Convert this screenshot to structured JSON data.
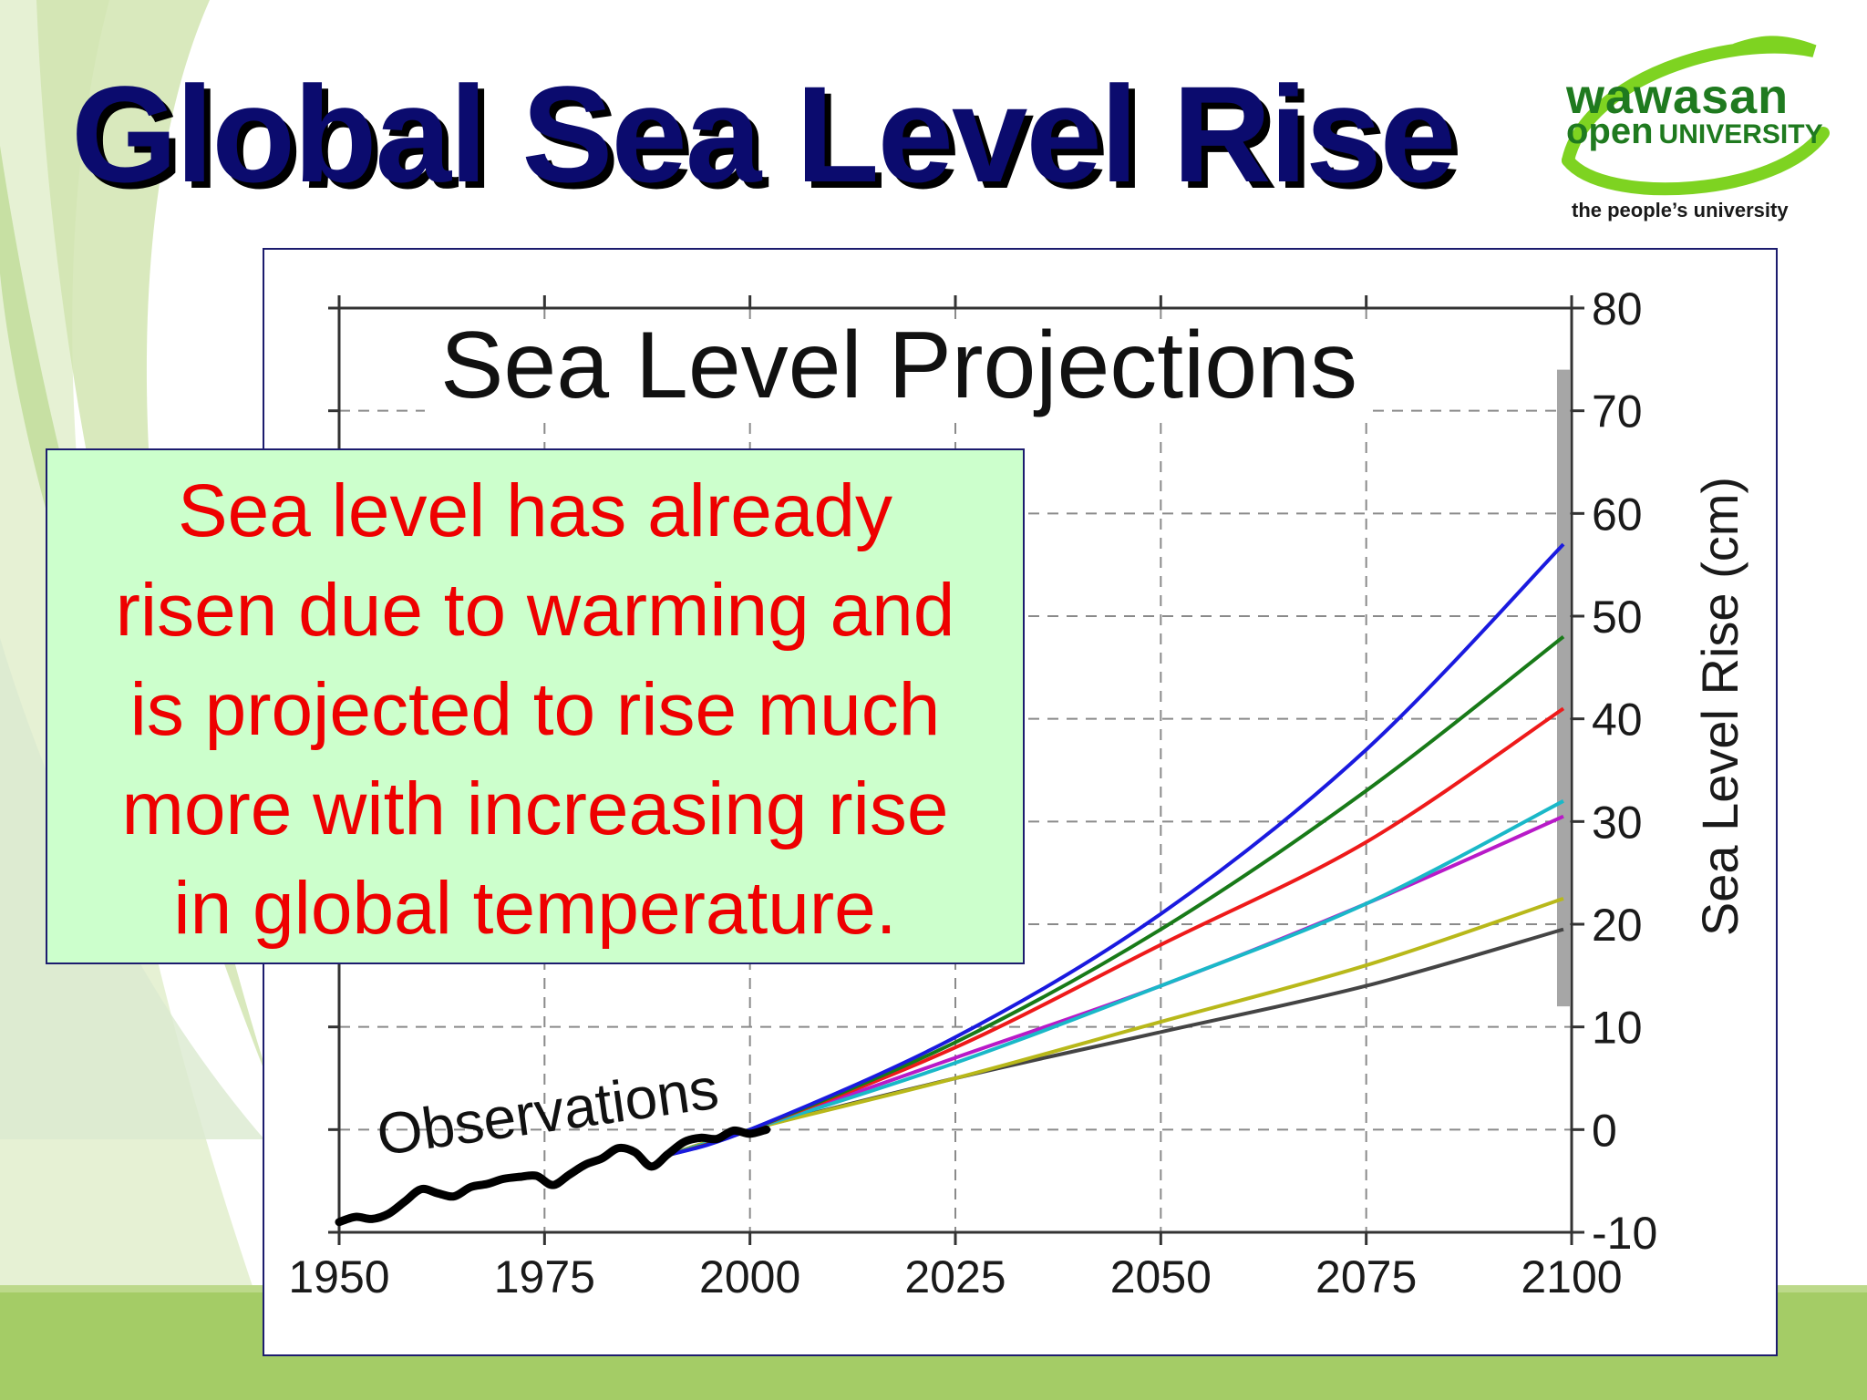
{
  "slide": {
    "title": "Global Sea Level Rise",
    "logo": {
      "line1": "wawasan",
      "line2_word": "open",
      "line2_uni": "UNIVERSITY",
      "tagline": "the people’s university"
    },
    "callout_lines": [
      "Sea level has already",
      "risen due to warming and",
      "is projected to rise much",
      "more with increasing rise",
      "in global temperature."
    ]
  },
  "colors": {
    "title": "#0b0b6e",
    "callout_text": "#ee0000",
    "callout_bg": "#ccffcc",
    "logo_green": "#1f7a1f",
    "logo_ring": "#7ed321",
    "footer_green": "#a4cc66"
  },
  "chart_data": {
    "type": "line",
    "title": "Sea Level Projections",
    "xlabel": "",
    "ylabel": "Sea Level Rise (cm)",
    "xlim": [
      1950,
      2100
    ],
    "ylim": [
      -10,
      80
    ],
    "xticks": [
      1950,
      1975,
      2000,
      2025,
      2050,
      2075,
      2100
    ],
    "yticks": [
      -10,
      0,
      10,
      20,
      30,
      40,
      50,
      60,
      70,
      80
    ],
    "grid": true,
    "y_axis_side": "right",
    "annotations": [
      "Observations"
    ],
    "observations": {
      "x": [
        1950,
        1952,
        1954,
        1956,
        1958,
        1960,
        1962,
        1964,
        1966,
        1968,
        1970,
        1972,
        1974,
        1976,
        1978,
        1980,
        1982,
        1984,
        1986,
        1988,
        1990,
        1992,
        1994,
        1996,
        1998,
        2000,
        2002
      ],
      "y": [
        -9,
        -8.5,
        -8.7,
        -8.2,
        -7,
        -5.8,
        -6.2,
        -6.5,
        -5.6,
        -5.3,
        -4.8,
        -4.6,
        -4.5,
        -5.4,
        -4.4,
        -3.4,
        -2.8,
        -1.8,
        -2.2,
        -3.6,
        -2.4,
        -1.2,
        -0.8,
        -0.9,
        -0.1,
        -0.4,
        0
      ]
    },
    "uncertainty_bar": {
      "x": 2099,
      "y_range": [
        12,
        74
      ]
    },
    "series": [
      {
        "color": "#1a1adf",
        "x": [
          1990,
          2000,
          2025,
          2050,
          2075,
          2099
        ],
        "y": [
          -2.5,
          0,
          9,
          21,
          37,
          57
        ]
      },
      {
        "color": "#187a18",
        "x": [
          1990,
          2000,
          2025,
          2050,
          2075,
          2099
        ],
        "y": [
          -2.5,
          0,
          8.5,
          19.5,
          33,
          48
        ]
      },
      {
        "color": "#ee1a1a",
        "x": [
          1990,
          2000,
          2025,
          2050,
          2075,
          2099
        ],
        "y": [
          -2.5,
          0,
          8,
          18,
          28,
          41
        ]
      },
      {
        "color": "#1ab8c8",
        "x": [
          1990,
          2000,
          2025,
          2050,
          2075,
          2099
        ],
        "y": [
          -2.5,
          0,
          6.5,
          14,
          22,
          32
        ]
      },
      {
        "color": "#b81ac8",
        "x": [
          1990,
          2000,
          2025,
          2050,
          2075,
          2099
        ],
        "y": [
          -2.5,
          0,
          7,
          14,
          22,
          30.5
        ]
      },
      {
        "color": "#b8b81a",
        "x": [
          1990,
          2000,
          2025,
          2050,
          2075,
          2099
        ],
        "y": [
          -2.5,
          0,
          5,
          10.5,
          16,
          22.5
        ]
      },
      {
        "color": "#444444",
        "x": [
          1990,
          2000,
          2025,
          2050,
          2075,
          2099
        ],
        "y": [
          -2.5,
          0,
          5,
          9.5,
          14,
          19.5
        ]
      }
    ]
  }
}
